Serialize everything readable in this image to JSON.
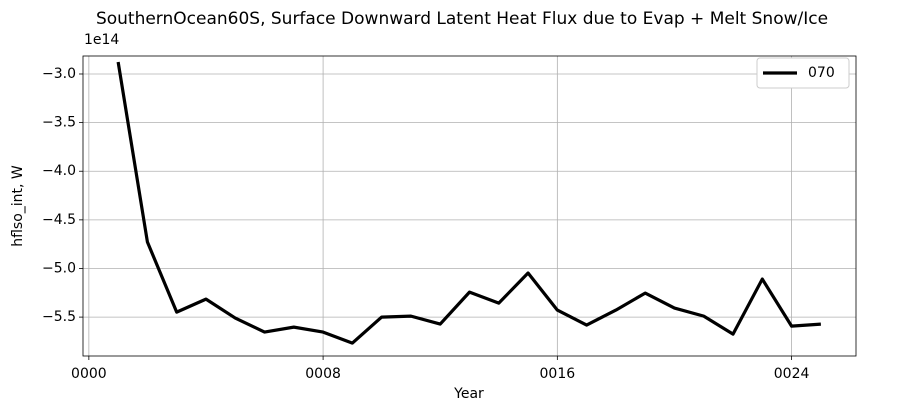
{
  "chart_data": {
    "type": "line",
    "title": "SouthernOcean60S, Surface Downward Latent Heat Flux due to Evap + Melt Snow/Ice",
    "xlabel": "Year",
    "ylabel": "hflso_int, W",
    "y_offset_label": "1e14",
    "x": [
      1,
      2,
      3,
      4,
      5,
      6,
      7,
      8,
      9,
      10,
      11,
      12,
      13,
      14,
      15,
      16,
      17,
      18,
      19,
      20,
      21,
      22,
      23,
      24,
      25
    ],
    "series": [
      {
        "name": "070",
        "color": "#000000",
        "values": [
          -2.877,
          -4.728,
          -5.449,
          -5.315,
          -5.51,
          -5.654,
          -5.603,
          -5.654,
          -5.767,
          -5.5,
          -5.49,
          -5.572,
          -5.243,
          -5.356,
          -5.047,
          -5.428,
          -5.582,
          -5.428,
          -5.253,
          -5.407,
          -5.49,
          -5.675,
          -5.109,
          -5.593,
          -5.572
        ]
      }
    ],
    "xlim": [
      -0.2,
      26.2
    ],
    "xticks": [
      {
        "value": 0,
        "label": "0000"
      },
      {
        "value": 8,
        "label": "0008"
      },
      {
        "value": 16,
        "label": "0016"
      },
      {
        "value": 24,
        "label": "0024"
      }
    ],
    "ylim": [
      -5.9,
      -2.815
    ],
    "yticks": [
      {
        "value": -3.0,
        "label": "−3.0"
      },
      {
        "value": -3.5,
        "label": "−3.5"
      },
      {
        "value": -4.0,
        "label": "−4.0"
      },
      {
        "value": -4.5,
        "label": "−4.5"
      },
      {
        "value": -5.0,
        "label": "−5.0"
      },
      {
        "value": -5.5,
        "label": "−5.5"
      }
    ],
    "grid": true,
    "legend": "upper right"
  }
}
